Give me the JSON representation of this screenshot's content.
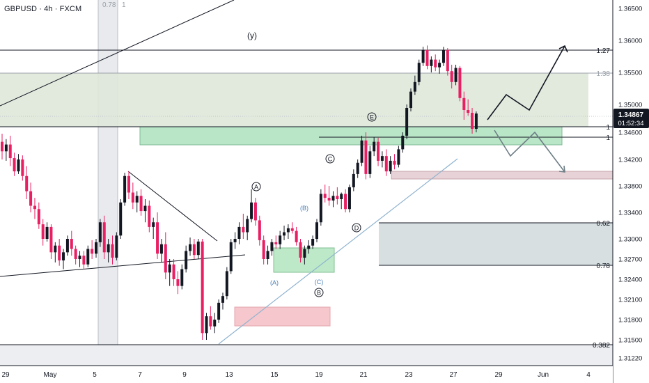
{
  "header": {
    "symbol": "GBPUSD · 4h · FXCM"
  },
  "fib_tag": {
    "value": "0.78",
    "suffix": "1"
  },
  "wave_y_label": "(y)",
  "current_price": {
    "price": "1.34867",
    "countdown": "01:52:34"
  },
  "colors": {
    "bull": "#131722",
    "bear": "#e91e63",
    "axis_bg": "#ffffff",
    "zone_green": "#b7e4c7",
    "zone_gray": "#d6dee0",
    "zone_red": "#f5c6cc",
    "zone_pink": "#e9cdd2",
    "trend_blue": "#8fb3cf"
  },
  "chart_data": {
    "type": "candlestick",
    "title": "GBPUSD · 4h · FXCM",
    "y_axis_ticks": [
      "1.36500",
      "1.36000",
      "1.35500",
      "1.35000",
      "1.34600",
      "1.34200",
      "1.33800",
      "1.33400",
      "1.33000",
      "1.32700",
      "1.32400",
      "1.32100",
      "1.31800",
      "1.31500",
      "1.31220"
    ],
    "x_axis_ticks": [
      "29",
      "May",
      "5",
      "7",
      "9",
      "13",
      "15",
      "19",
      "21",
      "23",
      "27",
      "29",
      "Jun",
      "4"
    ],
    "level_tags": [
      {
        "label": "1.27",
        "style": "dark"
      },
      {
        "label": "1.38",
        "style": "muted"
      },
      {
        "label": "1",
        "style": "dark"
      },
      {
        "label": "1",
        "style": "dark"
      },
      {
        "label": "0.62",
        "style": "dark"
      },
      {
        "label": "0.78",
        "style": "dark"
      },
      {
        "label": "0.382",
        "style": "dark"
      }
    ],
    "wave_labels": [
      "A",
      "C",
      "E",
      "D",
      "B"
    ],
    "sub_wave_labels": [
      "(B)",
      "(A)",
      "(C)"
    ],
    "candles": [
      [
        1.3446,
        1.3458,
        1.342,
        1.3432
      ],
      [
        1.3432,
        1.345,
        1.3418,
        1.3442
      ],
      [
        1.3442,
        1.3455,
        1.341,
        1.3422
      ],
      [
        1.3422,
        1.343,
        1.3395,
        1.3402
      ],
      [
        1.3402,
        1.3428,
        1.3398,
        1.342
      ],
      [
        1.342,
        1.3426,
        1.3388,
        1.3395
      ],
      [
        1.3395,
        1.341,
        1.336,
        1.3372
      ],
      [
        1.3372,
        1.3385,
        1.334,
        1.335
      ],
      [
        1.335,
        1.3362,
        1.333,
        1.3345
      ],
      [
        1.3345,
        1.3355,
        1.3315,
        1.3322
      ],
      [
        1.3322,
        1.333,
        1.329,
        1.33
      ],
      [
        1.33,
        1.3325,
        1.3296,
        1.3318
      ],
      [
        1.3318,
        1.3322,
        1.327,
        1.328
      ],
      [
        1.328,
        1.3295,
        1.3265,
        1.329
      ],
      [
        1.329,
        1.33,
        1.326,
        1.3268
      ],
      [
        1.3268,
        1.3285,
        1.3255,
        1.328
      ],
      [
        1.328,
        1.3305,
        1.3275,
        1.33
      ],
      [
        1.33,
        1.3312,
        1.3275,
        1.3285
      ],
      [
        1.3285,
        1.329,
        1.3262,
        1.327
      ],
      [
        1.327,
        1.3282,
        1.3258,
        1.3275
      ],
      [
        1.3275,
        1.3282,
        1.3255,
        1.3262
      ],
      [
        1.3262,
        1.329,
        1.3258,
        1.3285
      ],
      [
        1.3285,
        1.3298,
        1.327,
        1.3278
      ],
      [
        1.3278,
        1.33,
        1.3272,
        1.3295
      ],
      [
        1.3295,
        1.333,
        1.3288,
        1.3325
      ],
      [
        1.3325,
        1.3335,
        1.327,
        1.328
      ],
      [
        1.328,
        1.33,
        1.3265,
        1.3292
      ],
      [
        1.3292,
        1.3305,
        1.3262,
        1.3272
      ],
      [
        1.3272,
        1.331,
        1.3268,
        1.3305
      ],
      [
        1.3305,
        1.336,
        1.33,
        1.3355
      ],
      [
        1.3355,
        1.34,
        1.335,
        1.3395
      ],
      [
        1.3395,
        1.3402,
        1.336,
        1.337
      ],
      [
        1.337,
        1.3385,
        1.3345,
        1.3355
      ],
      [
        1.3355,
        1.3372,
        1.334,
        1.3365
      ],
      [
        1.3365,
        1.3375,
        1.3335,
        1.3342
      ],
      [
        1.3342,
        1.336,
        1.3325,
        1.335
      ],
      [
        1.335,
        1.3358,
        1.331,
        1.3318
      ],
      [
        1.3318,
        1.3332,
        1.33,
        1.3325
      ],
      [
        1.3325,
        1.334,
        1.327,
        1.3278
      ],
      [
        1.3278,
        1.33,
        1.3265,
        1.3292
      ],
      [
        1.3292,
        1.331,
        1.324,
        1.325
      ],
      [
        1.325,
        1.327,
        1.323,
        1.3262
      ],
      [
        1.3262,
        1.327,
        1.323,
        1.324
      ],
      [
        1.324,
        1.3252,
        1.3218,
        1.323
      ],
      [
        1.323,
        1.3262,
        1.3225,
        1.3255
      ],
      [
        1.3255,
        1.329,
        1.325,
        1.3282
      ],
      [
        1.3282,
        1.3302,
        1.3275,
        1.3292
      ],
      [
        1.3292,
        1.33,
        1.327,
        1.3276
      ],
      [
        1.3276,
        1.33,
        1.327,
        1.3296
      ],
      [
        1.3296,
        1.33,
        1.315,
        1.316
      ],
      [
        1.316,
        1.319,
        1.315,
        1.3185
      ],
      [
        1.3185,
        1.32,
        1.3165,
        1.317
      ],
      [
        1.317,
        1.319,
        1.316,
        1.318
      ],
      [
        1.318,
        1.321,
        1.3175,
        1.3205
      ],
      [
        1.3205,
        1.322,
        1.3195,
        1.3215
      ],
      [
        1.3215,
        1.3258,
        1.321,
        1.3252
      ],
      [
        1.3252,
        1.33,
        1.3248,
        1.3295
      ],
      [
        1.3295,
        1.331,
        1.3285,
        1.33
      ],
      [
        1.33,
        1.3325,
        1.3292,
        1.3318
      ],
      [
        1.3318,
        1.3338,
        1.33,
        1.331
      ],
      [
        1.331,
        1.3335,
        1.3298,
        1.333
      ],
      [
        1.333,
        1.3375,
        1.3325,
        1.3355
      ],
      [
        1.3355,
        1.3362,
        1.332,
        1.3328
      ],
      [
        1.3328,
        1.3335,
        1.329,
        1.3298
      ],
      [
        1.3298,
        1.3305,
        1.3262,
        1.327
      ],
      [
        1.327,
        1.329,
        1.3262,
        1.3282
      ],
      [
        1.3282,
        1.33,
        1.3275,
        1.3295
      ],
      [
        1.3295,
        1.3305,
        1.3285,
        1.3292
      ],
      [
        1.3292,
        1.3312,
        1.3285,
        1.3305
      ],
      [
        1.3305,
        1.332,
        1.3298,
        1.331
      ],
      [
        1.331,
        1.3322,
        1.33,
        1.3316
      ],
      [
        1.3316,
        1.3325,
        1.3308,
        1.3312
      ],
      [
        1.3312,
        1.3318,
        1.329,
        1.3295
      ],
      [
        1.3295,
        1.33,
        1.3265,
        1.3272
      ],
      [
        1.3272,
        1.329,
        1.3262,
        1.3285
      ],
      [
        1.3285,
        1.3298,
        1.3278,
        1.329
      ],
      [
        1.329,
        1.3305,
        1.3285,
        1.33
      ],
      [
        1.33,
        1.333,
        1.3295,
        1.3325
      ],
      [
        1.3325,
        1.3375,
        1.332,
        1.3368
      ],
      [
        1.3368,
        1.3382,
        1.3355,
        1.3362
      ],
      [
        1.3362,
        1.338,
        1.335,
        1.3358
      ],
      [
        1.3358,
        1.3372,
        1.3348,
        1.3365
      ],
      [
        1.3365,
        1.3378,
        1.3352,
        1.336
      ],
      [
        1.336,
        1.337,
        1.3345,
        1.3368
      ],
      [
        1.3368,
        1.3375,
        1.334,
        1.3345
      ],
      [
        1.3345,
        1.3382,
        1.334,
        1.3378
      ],
      [
        1.3378,
        1.3405,
        1.3372,
        1.3398
      ],
      [
        1.3398,
        1.342,
        1.3392,
        1.3415
      ],
      [
        1.3415,
        1.3455,
        1.341,
        1.3448
      ],
      [
        1.3448,
        1.346,
        1.339,
        1.3398
      ],
      [
        1.3398,
        1.344,
        1.3392,
        1.3432
      ],
      [
        1.3432,
        1.3453,
        1.3425,
        1.3446
      ],
      [
        1.3446,
        1.3452,
        1.341,
        1.3418
      ],
      [
        1.3418,
        1.3432,
        1.3408,
        1.3425
      ],
      [
        1.3425,
        1.3435,
        1.3395,
        1.3402
      ],
      [
        1.3402,
        1.3425,
        1.3398,
        1.3418
      ],
      [
        1.3418,
        1.3428,
        1.3405,
        1.3412
      ],
      [
        1.3412,
        1.344,
        1.3408,
        1.3435
      ],
      [
        1.3435,
        1.346,
        1.343,
        1.3455
      ],
      [
        1.3455,
        1.35,
        1.345,
        1.3495
      ],
      [
        1.3495,
        1.3525,
        1.349,
        1.352
      ],
      [
        1.352,
        1.3545,
        1.3515,
        1.3535
      ],
      [
        1.3535,
        1.357,
        1.353,
        1.3565
      ],
      [
        1.3565,
        1.359,
        1.356,
        1.3585
      ],
      [
        1.3585,
        1.3592,
        1.3555,
        1.356
      ],
      [
        1.356,
        1.3575,
        1.355,
        1.357
      ],
      [
        1.357,
        1.3578,
        1.3552,
        1.3558
      ],
      [
        1.3558,
        1.357,
        1.3548,
        1.3565
      ],
      [
        1.3565,
        1.359,
        1.356,
        1.3585
      ],
      [
        1.3585,
        1.3588,
        1.3545,
        1.3552
      ],
      [
        1.3552,
        1.3562,
        1.3525,
        1.3535
      ],
      [
        1.3535,
        1.3562,
        1.353,
        1.3557
      ],
      [
        1.3557,
        1.356,
        1.3505,
        1.351
      ],
      [
        1.351,
        1.352,
        1.3478,
        1.3492
      ],
      [
        1.3492,
        1.3508,
        1.3484,
        1.3488
      ],
      [
        1.3488,
        1.3495,
        1.3458,
        1.3465
      ],
      [
        1.3465,
        1.349,
        1.346,
        1.3487
      ]
    ]
  }
}
